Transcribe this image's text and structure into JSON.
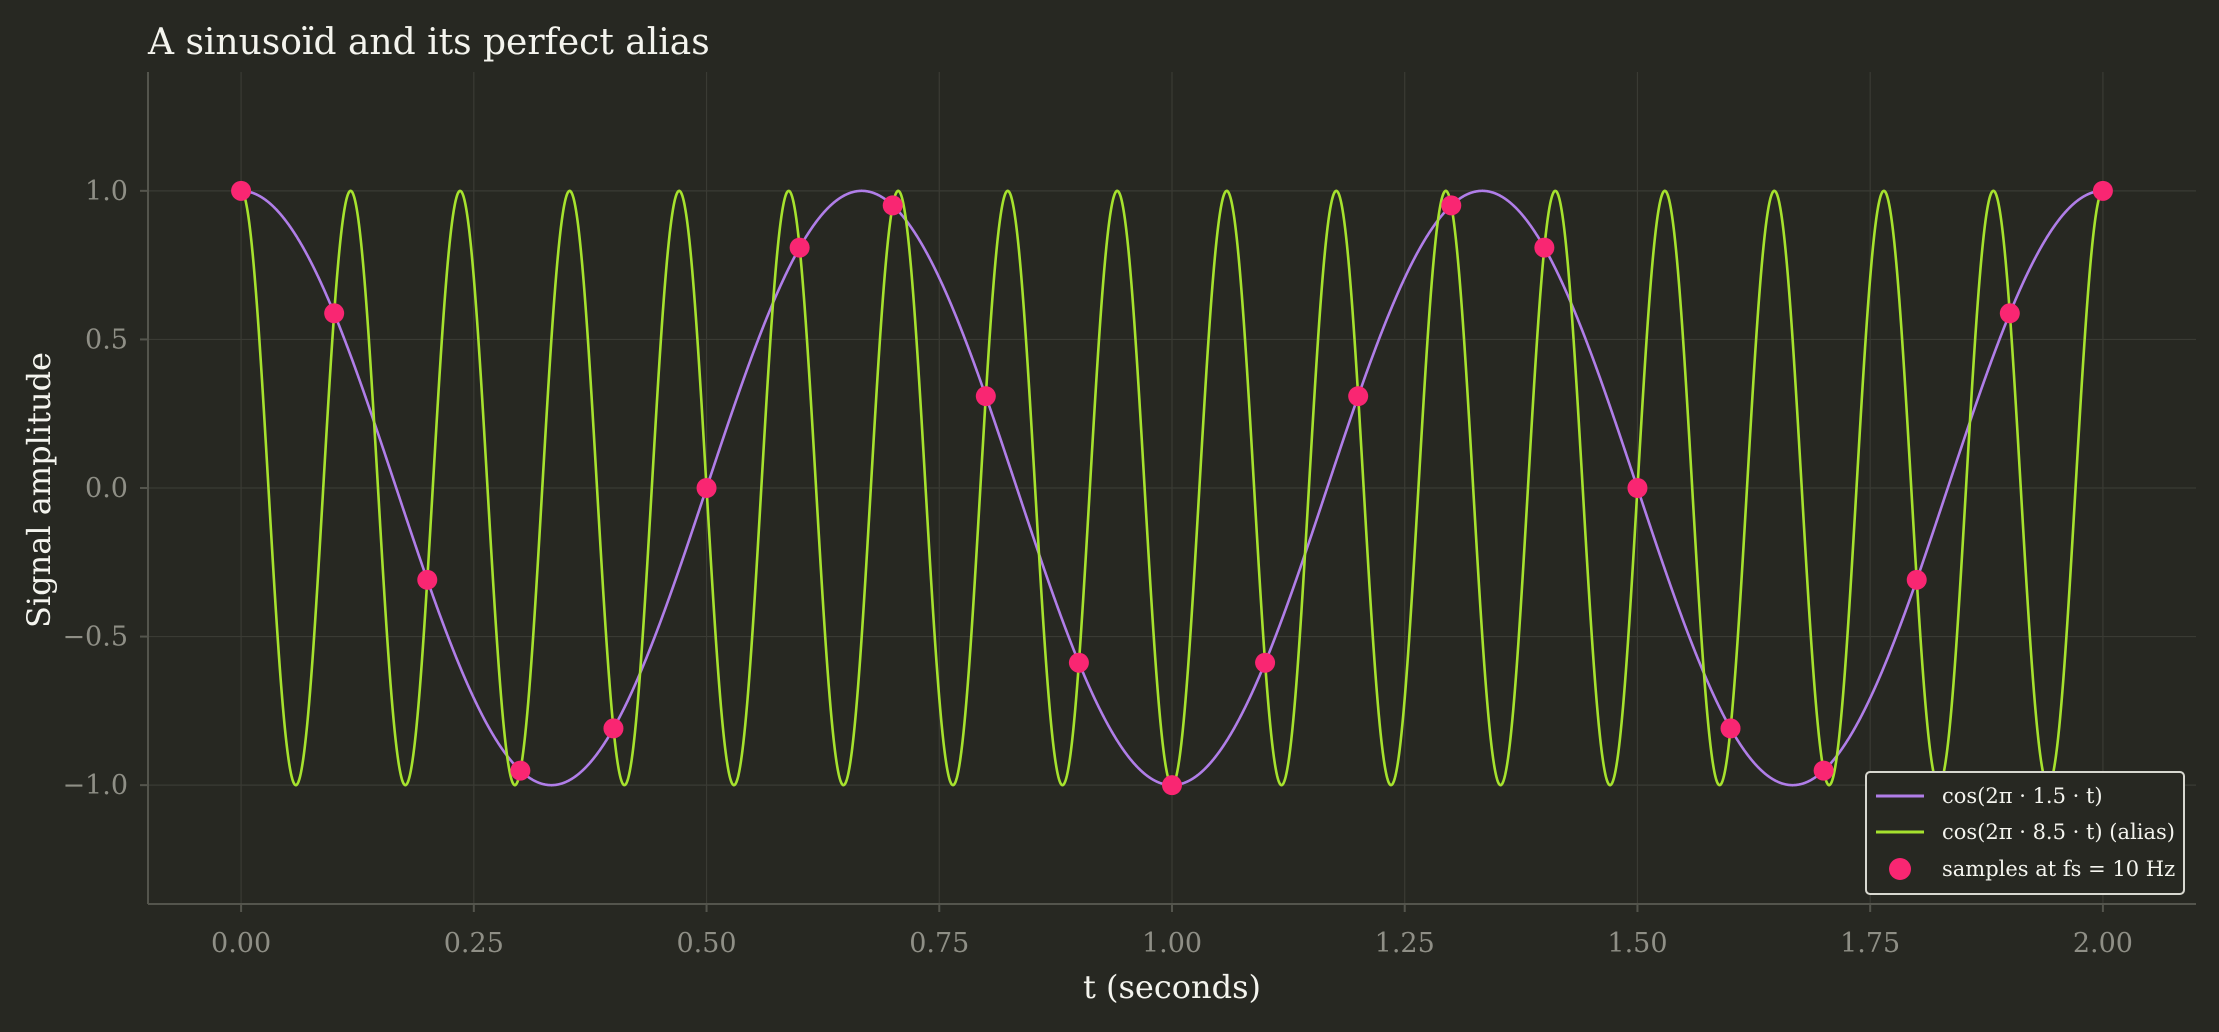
{
  "chart_data": {
    "type": "line",
    "title": "A sinusoïd and its perfect alias",
    "xlabel": "t (seconds)",
    "ylabel": "Signal amplitude",
    "xlim": [
      -0.1,
      2.1
    ],
    "ylim": [
      -1.4,
      1.4
    ],
    "x_ticks": [
      0.0,
      0.25,
      0.5,
      0.75,
      1.0,
      1.25,
      1.5,
      1.75,
      2.0
    ],
    "x_tick_labels": [
      "0.00",
      "0.25",
      "0.50",
      "0.75",
      "1.00",
      "1.25",
      "1.50",
      "1.75",
      "2.00"
    ],
    "y_ticks": [
      -1.0,
      -0.5,
      0.0,
      0.5,
      1.0
    ],
    "y_tick_labels": [
      "−1.0",
      "−0.5",
      "0.0",
      "0.5",
      "1.0"
    ],
    "grid": true,
    "legend_position": "bottom-right",
    "series": [
      {
        "name": "cos(2π · 1.5 · t)",
        "kind": "line",
        "frequency_hz": 1.5,
        "color": "#b07ee8"
      },
      {
        "name": "cos(2π · 8.5 · t) (alias)",
        "kind": "line",
        "frequency_hz": 8.5,
        "color": "#a6e22e"
      },
      {
        "name": "samples at fs = 10 Hz",
        "kind": "scatter",
        "color": "#f92672",
        "x": [
          0.0,
          0.1,
          0.2,
          0.3,
          0.4,
          0.5,
          0.6,
          0.7,
          0.8,
          0.9,
          1.0,
          1.1,
          1.2,
          1.3,
          1.4,
          1.5,
          1.6,
          1.7,
          1.8,
          1.9,
          2.0
        ],
        "y": [
          1.0,
          0.588,
          -0.309,
          -0.951,
          -0.809,
          0.0,
          0.809,
          0.951,
          0.309,
          -0.588,
          -1.0,
          -0.588,
          0.309,
          0.951,
          0.809,
          0.0,
          -0.809,
          -0.951,
          -0.309,
          0.588,
          1.0
        ]
      }
    ]
  }
}
